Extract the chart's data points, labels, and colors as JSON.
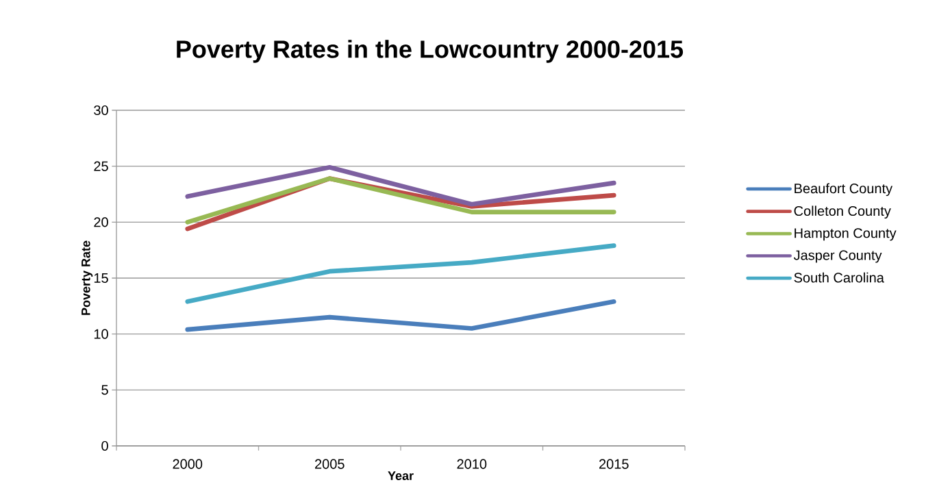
{
  "chart_data": {
    "type": "line",
    "title": "Poverty Rates in the Lowcountry  2000-2015",
    "xlabel": "Year",
    "ylabel": "Poverty Rate",
    "categories": [
      "2000",
      "2005",
      "2010",
      "2015"
    ],
    "series": [
      {
        "name": "Beaufort County",
        "color": "#4a7ebb",
        "values": [
          10.4,
          11.5,
          10.5,
          12.9
        ]
      },
      {
        "name": "Colleton County",
        "color": "#be4b48",
        "values": [
          19.4,
          23.9,
          21.4,
          22.4
        ]
      },
      {
        "name": "Hampton County",
        "color": "#98b954",
        "values": [
          20.0,
          23.9,
          20.9,
          20.9
        ]
      },
      {
        "name": "Jasper County",
        "color": "#7d60a0",
        "values": [
          22.3,
          24.9,
          21.6,
          23.5
        ]
      },
      {
        "name": "South Carolina",
        "color": "#46aac5",
        "values": [
          12.9,
          15.6,
          16.4,
          17.9
        ]
      }
    ],
    "ylim": [
      0,
      30
    ],
    "yticks": [
      0,
      5,
      10,
      15,
      20,
      25,
      30
    ],
    "grid": "y",
    "legend": "right",
    "marker": "none",
    "line_style": "solid"
  }
}
